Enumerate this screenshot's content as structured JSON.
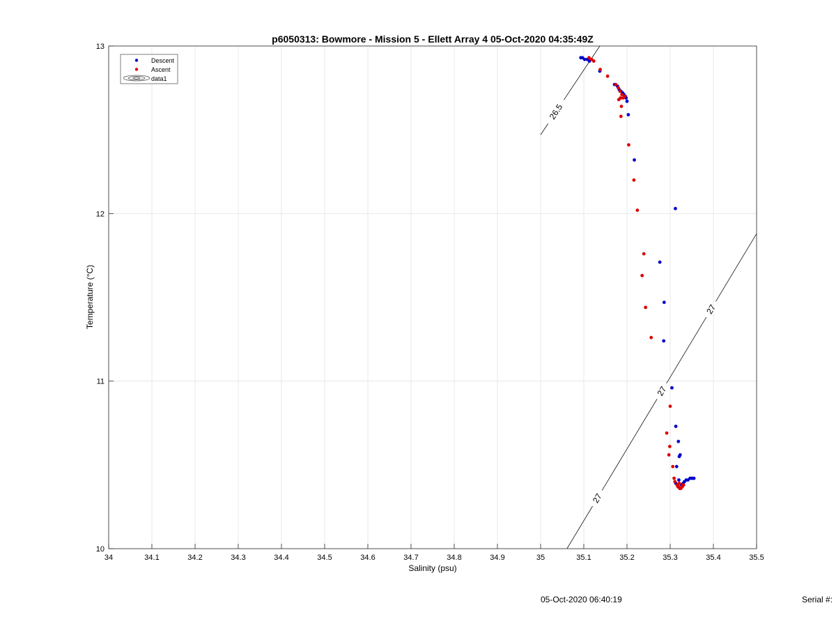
{
  "chart_data": {
    "type": "scatter",
    "title": "p6050313: Bowmore - Mission 5 - Ellett Array 4 05-Oct-2020 04:35:49Z",
    "xlabel": "Salinity (psu)",
    "ylabel": "Temperature (°C)",
    "xlim": [
      34,
      35.5
    ],
    "ylim": [
      10,
      13
    ],
    "x_ticks": [
      "34",
      "34.1",
      "34.2",
      "34.3",
      "34.4",
      "34.5",
      "34.6",
      "34.7",
      "34.8",
      "34.9",
      "35",
      "35.1",
      "35.2",
      "35.3",
      "35.4",
      "35.5"
    ],
    "y_ticks": [
      "10",
      "11",
      "12",
      "13"
    ],
    "grid": true,
    "legend_position": "top-left",
    "legend": [
      "Descent",
      "Ascent",
      "data1"
    ],
    "series": [
      {
        "name": "Descent",
        "color": "#0000cc",
        "x": [
          35.093,
          35.097,
          35.102,
          35.108,
          35.113,
          35.137,
          35.171,
          35.178,
          35.182,
          35.186,
          35.19,
          35.193,
          35.196,
          35.198,
          35.2,
          35.203,
          35.217,
          35.312,
          35.276,
          35.286,
          35.285,
          35.304,
          35.313,
          35.319,
          35.323,
          35.321,
          35.315,
          35.313,
          35.32,
          35.326,
          35.33,
          35.333,
          35.337,
          35.341,
          35.346,
          35.351,
          35.355,
          35.318,
          35.322,
          35.327
        ],
        "y": [
          12.93,
          12.93,
          12.92,
          12.92,
          12.91,
          12.85,
          12.77,
          12.76,
          12.74,
          12.73,
          12.72,
          12.71,
          12.7,
          12.69,
          12.67,
          12.59,
          12.32,
          12.03,
          11.71,
          11.47,
          11.24,
          10.96,
          10.73,
          10.64,
          10.56,
          10.55,
          10.49,
          10.39,
          10.41,
          10.38,
          10.39,
          10.4,
          10.41,
          10.41,
          10.42,
          10.42,
          10.42,
          10.37,
          10.36,
          10.37
        ]
      },
      {
        "name": "Ascent",
        "color": "#dd0000",
        "x": [
          35.112,
          35.118,
          35.123,
          35.138,
          35.155,
          35.174,
          35.18,
          35.184,
          35.188,
          35.195,
          35.191,
          35.185,
          35.187,
          35.181,
          35.186,
          35.204,
          35.216,
          35.224,
          35.239,
          35.235,
          35.243,
          35.256,
          35.3,
          35.292,
          35.299,
          35.297,
          35.306,
          35.309,
          35.311,
          35.316,
          35.319,
          35.322,
          35.325,
          35.328,
          35.331,
          35.321,
          35.318,
          35.324,
          35.327,
          35.33
        ],
        "y": [
          12.93,
          12.92,
          12.91,
          12.86,
          12.82,
          12.77,
          12.75,
          12.73,
          12.71,
          12.7,
          12.69,
          12.69,
          12.64,
          12.68,
          12.58,
          12.41,
          12.2,
          12.02,
          11.76,
          11.63,
          11.44,
          11.26,
          10.85,
          10.69,
          10.61,
          10.56,
          10.49,
          10.42,
          10.4,
          10.38,
          10.37,
          10.36,
          10.36,
          10.37,
          10.38,
          10.39,
          10.37,
          10.36,
          10.37,
          10.38
        ]
      }
    ],
    "contours": [
      {
        "label": "26.5",
        "x": [
          35.0,
          35.137
        ],
        "y": [
          12.47,
          13.0
        ]
      },
      {
        "label": "27",
        "x": [
          35.061,
          35.5
        ],
        "y": [
          10.0,
          11.88
        ]
      }
    ]
  },
  "footer": {
    "datetime": "05-Oct-2020 06:40:19",
    "serial": "Serial #:"
  }
}
